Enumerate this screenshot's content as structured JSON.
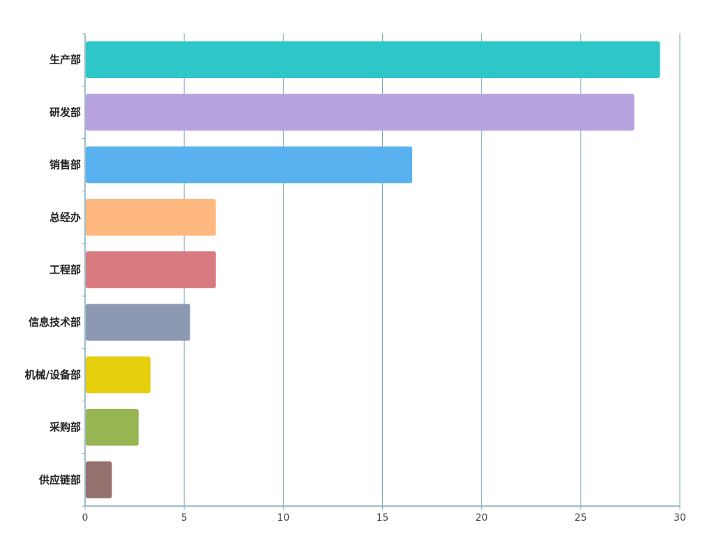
{
  "chart_data": {
    "type": "bar",
    "orientation": "horizontal",
    "title": "",
    "xlabel": "",
    "ylabel": "",
    "categories": [
      "生产部",
      "研发部",
      "销售部",
      "总经办",
      "工程部",
      "信息技术部",
      "机械/设备部",
      "采购部",
      "供应链部"
    ],
    "values": [
      29,
      27.7,
      16.5,
      6.6,
      6.6,
      5.3,
      3.3,
      2.7,
      1.35
    ],
    "colors": [
      "#2ec7c9",
      "#b6a2de",
      "#5ab1ef",
      "#ffb980",
      "#d87a80",
      "#8d98b3",
      "#e5cf0d",
      "#97b552",
      "#95706d"
    ],
    "xlim": [
      0,
      30
    ],
    "xticks": [
      "0",
      "5",
      "10",
      "15",
      "20",
      "25",
      "30"
    ],
    "grid": true,
    "legend": "none",
    "axis_color": "#7fa8b8"
  }
}
